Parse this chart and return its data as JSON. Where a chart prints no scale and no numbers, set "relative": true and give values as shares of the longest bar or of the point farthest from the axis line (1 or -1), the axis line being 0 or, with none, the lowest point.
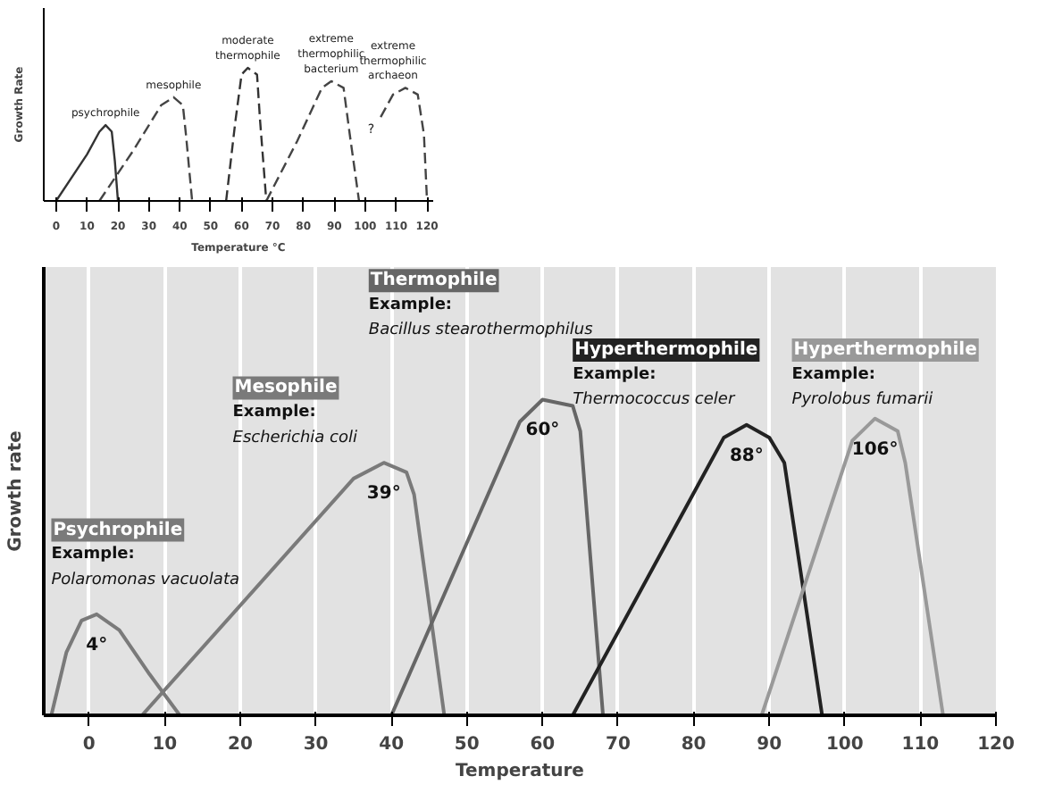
{
  "chart_data": [
    {
      "type": "line",
      "relative": true,
      "xlabel": "Temperature °C",
      "ylabel": "Growth Rate",
      "xlim": [
        -4,
        122
      ],
      "xticks": [
        0,
        10,
        20,
        30,
        40,
        50,
        60,
        70,
        80,
        90,
        100,
        110,
        120
      ],
      "grid": false,
      "marker": "none",
      "series": [
        {
          "name": "psychrophile",
          "color": "#333333",
          "line_style": "solid",
          "x": [
            0,
            10,
            14,
            16,
            18,
            19,
            20
          ],
          "values": [
            0,
            0.35,
            0.52,
            0.57,
            0.52,
            0.3,
            0
          ]
        },
        {
          "name": "mesophile",
          "color": "#444444",
          "line_style": "dashed",
          "x": [
            14,
            25,
            34,
            38,
            41,
            42,
            44
          ],
          "values": [
            0,
            0.38,
            0.72,
            0.78,
            0.72,
            0.5,
            0
          ]
        },
        {
          "name": "moderate\nthermophile",
          "color": "#333333",
          "line_style": "dashed",
          "x": [
            55,
            58,
            60,
            62,
            65,
            66,
            68
          ],
          "values": [
            0,
            0.6,
            0.95,
            1,
            0.95,
            0.6,
            0
          ]
        },
        {
          "name": "extreme\nthermophilic\nbacterium",
          "color": "#444444",
          "line_style": "dashed",
          "x": [
            68,
            78,
            86,
            89,
            93,
            95,
            98
          ],
          "values": [
            0,
            0.45,
            0.85,
            0.9,
            0.85,
            0.5,
            0
          ]
        },
        {
          "name": "extreme\nthermophilic\narchaeon",
          "color": "#444444",
          "line_style": "dashed",
          "x": [
            105,
            109,
            113,
            117,
            119,
            120
          ],
          "values": [
            0.63,
            0.8,
            0.85,
            0.8,
            0.5,
            0
          ]
        }
      ],
      "annotations": [
        "?"
      ]
    },
    {
      "type": "line",
      "relative": true,
      "xlabel": "Temperature",
      "ylabel": "Growth rate",
      "xlim": [
        -6,
        120
      ],
      "xticks": [
        0,
        10,
        20,
        30,
        40,
        50,
        60,
        70,
        80,
        90,
        100,
        110,
        120
      ],
      "grid": "x",
      "marker": "none",
      "series": [
        {
          "name": "Psychrophile",
          "color": "#7a7a7a",
          "x": [
            -5,
            -3,
            -1,
            1,
            4,
            8,
            12
          ],
          "values": [
            0,
            0.2,
            0.3,
            0.32,
            0.27,
            0.13,
            0
          ]
        },
        {
          "name": "Mesophile",
          "color": "#7a7a7a",
          "x": [
            7,
            35,
            39,
            42,
            43,
            47
          ],
          "values": [
            0,
            0.75,
            0.8,
            0.77,
            0.7,
            0
          ]
        },
        {
          "name": "Thermophile",
          "color": "#666666",
          "x": [
            40,
            57,
            60,
            64,
            65,
            68
          ],
          "values": [
            0,
            0.93,
            1,
            0.98,
            0.9,
            0
          ]
        },
        {
          "name": "Hyperthermophile",
          "color": "#222222",
          "x": [
            64,
            84,
            87,
            90,
            92,
            97
          ],
          "values": [
            0,
            0.88,
            0.92,
            0.88,
            0.8,
            0
          ]
        },
        {
          "name": "Hyperthermophile",
          "color": "#999999",
          "x": [
            89,
            101,
            104,
            107,
            108,
            113
          ],
          "values": [
            0,
            0.87,
            0.94,
            0.9,
            0.8,
            0
          ]
        }
      ],
      "annotations": [
        "Example:",
        "Polaromonas vacuolata",
        "4°",
        "Example:",
        "Escherichia coli",
        "39°",
        "Example:",
        "Bacillus stearothermophilus",
        "60°",
        "Example:",
        "Thermococcus celer",
        "88°",
        "Example:",
        "Pyrolobus fumarii",
        "106°"
      ]
    }
  ]
}
